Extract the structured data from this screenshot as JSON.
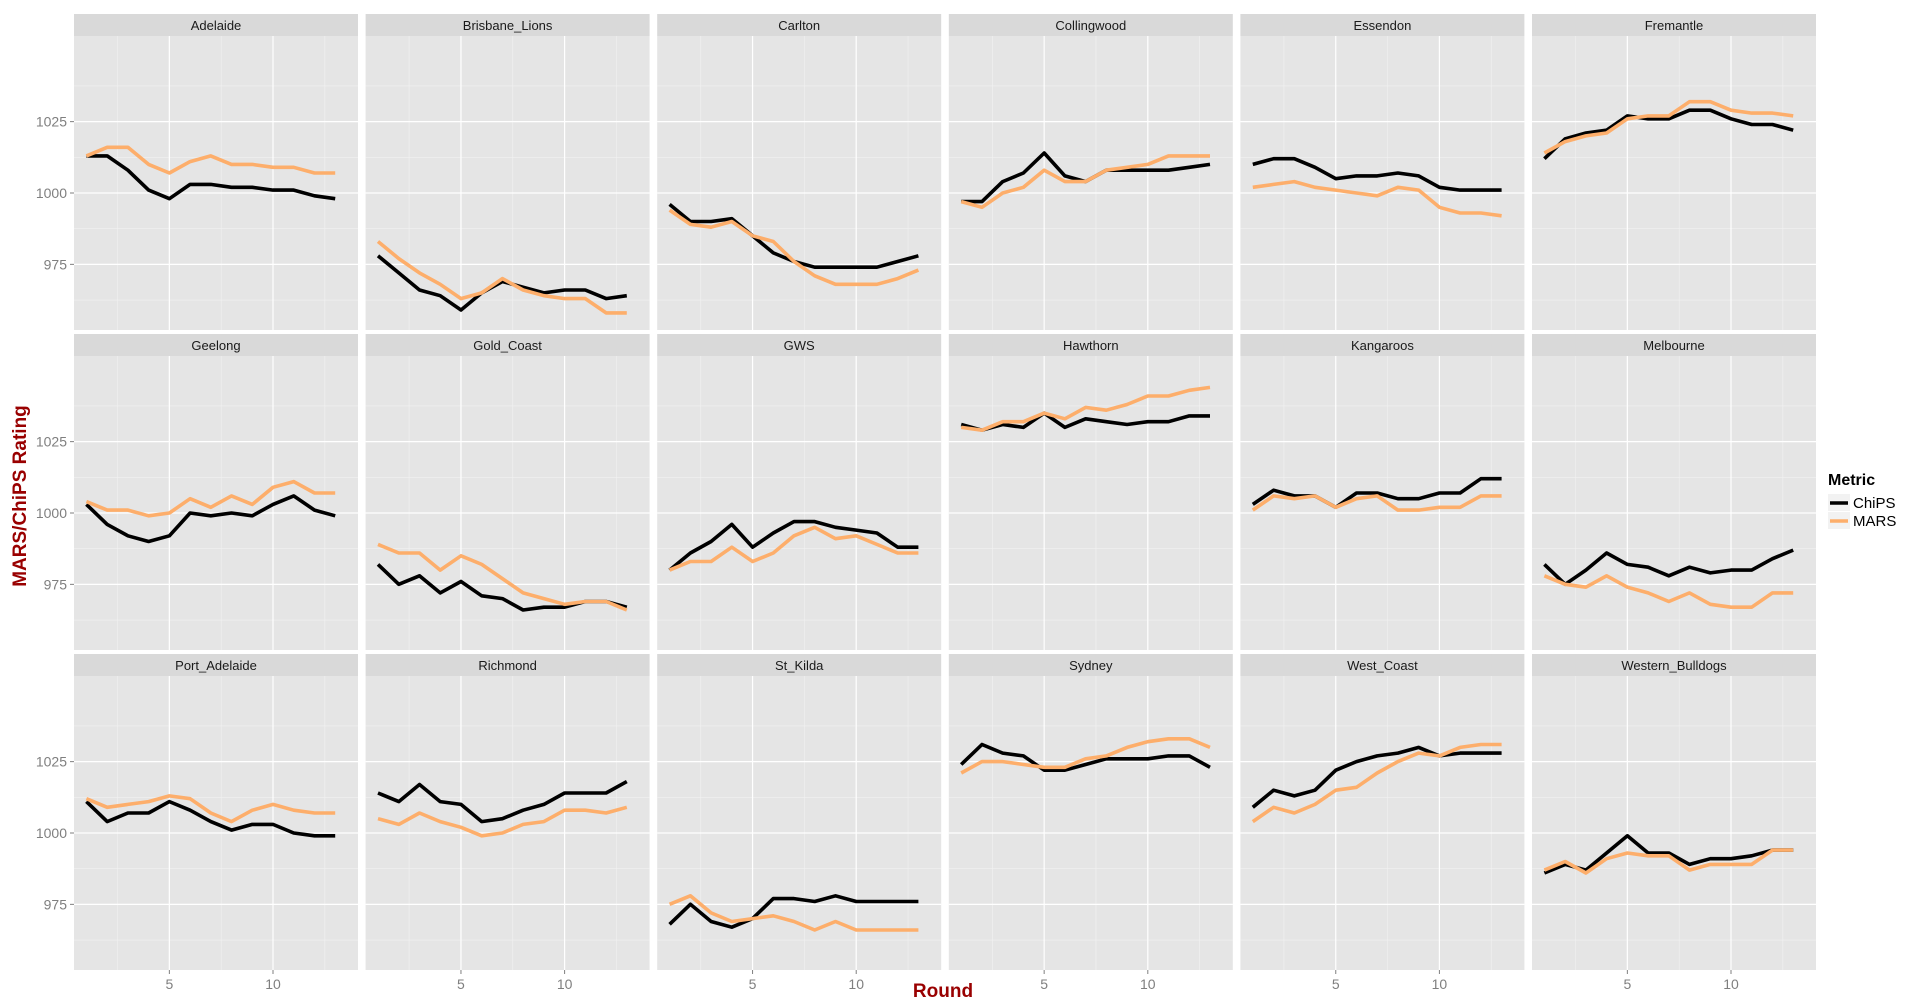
{
  "chart_data": {
    "type": "line",
    "facet_layout": {
      "rows": 3,
      "cols": 6
    },
    "xlabel": "Round",
    "ylabel": "MARS/ChiPS Rating",
    "x_ticks": [
      5,
      10
    ],
    "y_ticks": [
      975,
      1000,
      1025
    ],
    "xlim": [
      0.4,
      14.1
    ],
    "ylim": [
      952,
      1055
    ],
    "grid": true,
    "legend": {
      "title": "Metric",
      "position": "right",
      "entries": [
        {
          "name": "ChiPS",
          "color": "#000000"
        },
        {
          "name": "MARS",
          "color": "#fdae6b"
        }
      ]
    },
    "x": [
      1,
      2,
      3,
      4,
      5,
      6,
      7,
      8,
      9,
      10,
      11,
      12,
      13
    ],
    "panels": [
      {
        "name": "Adelaide",
        "series": [
          {
            "name": "ChiPS",
            "values": [
              1013,
              1013,
              1008,
              1001,
              998,
              1003,
              1003,
              1002,
              1002,
              1001,
              1001,
              999,
              998
            ]
          },
          {
            "name": "MARS",
            "values": [
              1013,
              1016,
              1016,
              1010,
              1007,
              1011,
              1013,
              1010,
              1010,
              1009,
              1009,
              1007,
              1007
            ]
          }
        ]
      },
      {
        "name": "Brisbane_Lions",
        "series": [
          {
            "name": "ChiPS",
            "values": [
              978,
              972,
              966,
              964,
              959,
              965,
              969,
              967,
              965,
              966,
              966,
              963,
              964
            ]
          },
          {
            "name": "MARS",
            "values": [
              983,
              977,
              972,
              968,
              963,
              965,
              970,
              966,
              964,
              963,
              963,
              958,
              958
            ]
          }
        ]
      },
      {
        "name": "Carlton",
        "series": [
          {
            "name": "ChiPS",
            "values": [
              996,
              990,
              990,
              991,
              985,
              979,
              976,
              974,
              974,
              974,
              974,
              976,
              978
            ]
          },
          {
            "name": "MARS",
            "values": [
              994,
              989,
              988,
              990,
              985,
              983,
              976,
              971,
              968,
              968,
              968,
              970,
              973
            ]
          }
        ]
      },
      {
        "name": "Collingwood",
        "series": [
          {
            "name": "ChiPS",
            "values": [
              997,
              997,
              1004,
              1007,
              1014,
              1006,
              1004,
              1008,
              1008,
              1008,
              1008,
              1009,
              1010
            ]
          },
          {
            "name": "MARS",
            "values": [
              997,
              995,
              1000,
              1002,
              1008,
              1004,
              1004,
              1008,
              1009,
              1010,
              1013,
              1013,
              1013
            ]
          }
        ]
      },
      {
        "name": "Essendon",
        "series": [
          {
            "name": "ChiPS",
            "values": [
              1010,
              1012,
              1012,
              1009,
              1005,
              1006,
              1006,
              1007,
              1006,
              1002,
              1001,
              1001,
              1001
            ]
          },
          {
            "name": "MARS",
            "values": [
              1002,
              1003,
              1004,
              1002,
              1001,
              1000,
              999,
              1002,
              1001,
              995,
              993,
              993,
              992
            ]
          }
        ]
      },
      {
        "name": "Fremantle",
        "series": [
          {
            "name": "ChiPS",
            "values": [
              1012,
              1019,
              1021,
              1022,
              1027,
              1026,
              1026,
              1029,
              1029,
              1026,
              1024,
              1024,
              1022
            ]
          },
          {
            "name": "MARS",
            "values": [
              1014,
              1018,
              1020,
              1021,
              1026,
              1027,
              1027,
              1032,
              1032,
              1029,
              1028,
              1028,
              1027
            ]
          }
        ]
      },
      {
        "name": "Geelong",
        "series": [
          {
            "name": "ChiPS",
            "values": [
              1003,
              996,
              992,
              990,
              992,
              1000,
              999,
              1000,
              999,
              1003,
              1006,
              1001,
              999
            ]
          },
          {
            "name": "MARS",
            "values": [
              1004,
              1001,
              1001,
              999,
              1000,
              1005,
              1002,
              1006,
              1003,
              1009,
              1011,
              1007,
              1007
            ]
          }
        ]
      },
      {
        "name": "Gold_Coast",
        "series": [
          {
            "name": "ChiPS",
            "values": [
              982,
              975,
              978,
              972,
              976,
              971,
              970,
              966,
              967,
              967,
              969,
              969,
              967
            ]
          },
          {
            "name": "MARS",
            "values": [
              989,
              986,
              986,
              980,
              985,
              982,
              977,
              972,
              970,
              968,
              969,
              969,
              966
            ]
          }
        ]
      },
      {
        "name": "GWS",
        "series": [
          {
            "name": "ChiPS",
            "values": [
              980,
              986,
              990,
              996,
              988,
              993,
              997,
              997,
              995,
              994,
              993,
              988,
              988
            ]
          },
          {
            "name": "MARS",
            "values": [
              980,
              983,
              983,
              988,
              983,
              986,
              992,
              995,
              991,
              992,
              989,
              986,
              986
            ]
          }
        ]
      },
      {
        "name": "Hawthorn",
        "series": [
          {
            "name": "ChiPS",
            "values": [
              1031,
              1029,
              1031,
              1030,
              1035,
              1030,
              1033,
              1032,
              1031,
              1032,
              1032,
              1034,
              1034
            ]
          },
          {
            "name": "MARS",
            "values": [
              1030,
              1029,
              1032,
              1032,
              1035,
              1033,
              1037,
              1036,
              1038,
              1041,
              1041,
              1043,
              1044
            ]
          }
        ]
      },
      {
        "name": "Kangaroos",
        "series": [
          {
            "name": "ChiPS",
            "values": [
              1003,
              1008,
              1006,
              1006,
              1002,
              1007,
              1007,
              1005,
              1005,
              1007,
              1007,
              1012,
              1012
            ]
          },
          {
            "name": "MARS",
            "values": [
              1001,
              1006,
              1005,
              1006,
              1002,
              1005,
              1006,
              1001,
              1001,
              1002,
              1002,
              1006,
              1006
            ]
          }
        ]
      },
      {
        "name": "Melbourne",
        "series": [
          {
            "name": "ChiPS",
            "values": [
              982,
              975,
              980,
              986,
              982,
              981,
              978,
              981,
              979,
              980,
              980,
              984,
              987
            ]
          },
          {
            "name": "MARS",
            "values": [
              978,
              975,
              974,
              978,
              974,
              972,
              969,
              972,
              968,
              967,
              967,
              972,
              972
            ]
          }
        ]
      },
      {
        "name": "Port_Adelaide",
        "series": [
          {
            "name": "ChiPS",
            "values": [
              1011,
              1004,
              1007,
              1007,
              1011,
              1008,
              1004,
              1001,
              1003,
              1003,
              1000,
              999,
              999
            ]
          },
          {
            "name": "MARS",
            "values": [
              1012,
              1009,
              1010,
              1011,
              1013,
              1012,
              1007,
              1004,
              1008,
              1010,
              1008,
              1007,
              1007
            ]
          }
        ]
      },
      {
        "name": "Richmond",
        "series": [
          {
            "name": "ChiPS",
            "values": [
              1014,
              1011,
              1017,
              1011,
              1010,
              1004,
              1005,
              1008,
              1010,
              1014,
              1014,
              1014,
              1018
            ]
          },
          {
            "name": "MARS",
            "values": [
              1005,
              1003,
              1007,
              1004,
              1002,
              999,
              1000,
              1003,
              1004,
              1008,
              1008,
              1007,
              1009
            ]
          }
        ]
      },
      {
        "name": "St_Kilda",
        "series": [
          {
            "name": "ChiPS",
            "values": [
              968,
              975,
              969,
              967,
              970,
              977,
              977,
              976,
              978,
              976,
              976,
              976,
              976
            ]
          },
          {
            "name": "MARS",
            "values": [
              975,
              978,
              972,
              969,
              970,
              971,
              969,
              966,
              969,
              966,
              966,
              966,
              966
            ]
          }
        ]
      },
      {
        "name": "Sydney",
        "series": [
          {
            "name": "ChiPS",
            "values": [
              1024,
              1031,
              1028,
              1027,
              1022,
              1022,
              1024,
              1026,
              1026,
              1026,
              1027,
              1027,
              1023
            ]
          },
          {
            "name": "MARS",
            "values": [
              1021,
              1025,
              1025,
              1024,
              1023,
              1023,
              1026,
              1027,
              1030,
              1032,
              1033,
              1033,
              1030
            ]
          }
        ]
      },
      {
        "name": "West_Coast",
        "series": [
          {
            "name": "ChiPS",
            "values": [
              1009,
              1015,
              1013,
              1015,
              1022,
              1025,
              1027,
              1028,
              1030,
              1027,
              1028,
              1028,
              1028
            ]
          },
          {
            "name": "MARS",
            "values": [
              1004,
              1009,
              1007,
              1010,
              1015,
              1016,
              1021,
              1025,
              1028,
              1027,
              1030,
              1031,
              1031
            ]
          }
        ]
      },
      {
        "name": "Western_Bulldogs",
        "series": [
          {
            "name": "ChiPS",
            "values": [
              986,
              989,
              987,
              993,
              999,
              993,
              993,
              989,
              991,
              991,
              992,
              994,
              994
            ]
          },
          {
            "name": "MARS",
            "values": [
              987,
              990,
              986,
              991,
              993,
              992,
              992,
              987,
              989,
              989,
              989,
              994,
              994
            ]
          }
        ]
      }
    ]
  }
}
